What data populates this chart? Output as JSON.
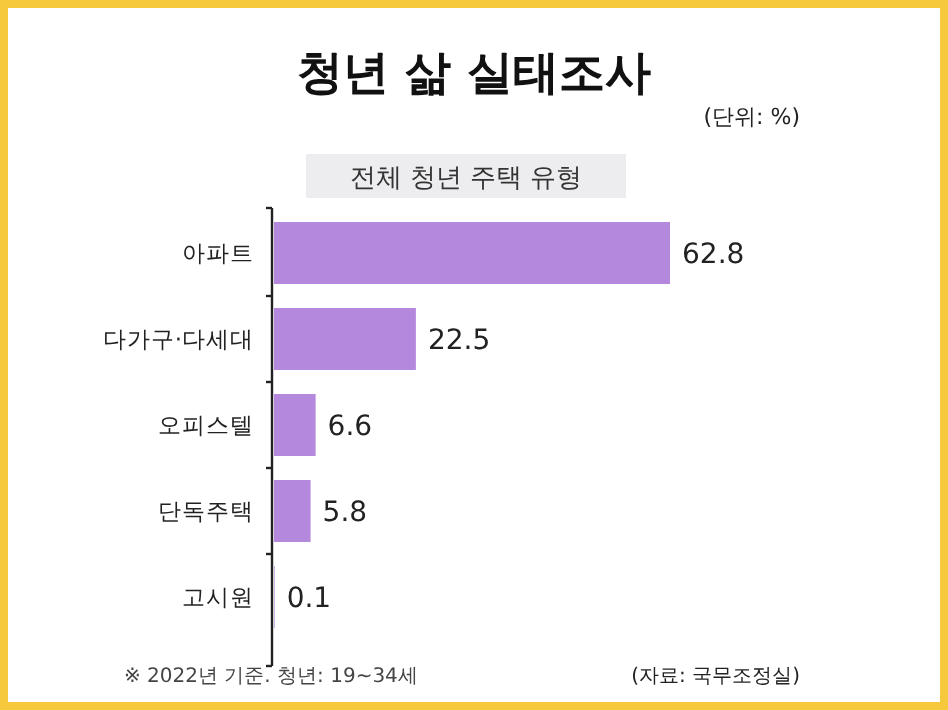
{
  "chart_data": {
    "type": "bar",
    "orientation": "horizontal",
    "title": "청년 삶 실태조사",
    "subtitle": "전체 청년 주택 유형",
    "categories": [
      "아파트",
      "다가구·다세대",
      "오피스텔",
      "단독주택",
      "고시원"
    ],
    "values": [
      62.8,
      22.5,
      6.6,
      5.8,
      0.1
    ],
    "color": "#b388dd",
    "data_labels": true,
    "annotations": [
      "(단위: %)",
      "※ 2022년 기준. 청년: 19~34세",
      "(자료: 국무조정실)"
    ]
  }
}
